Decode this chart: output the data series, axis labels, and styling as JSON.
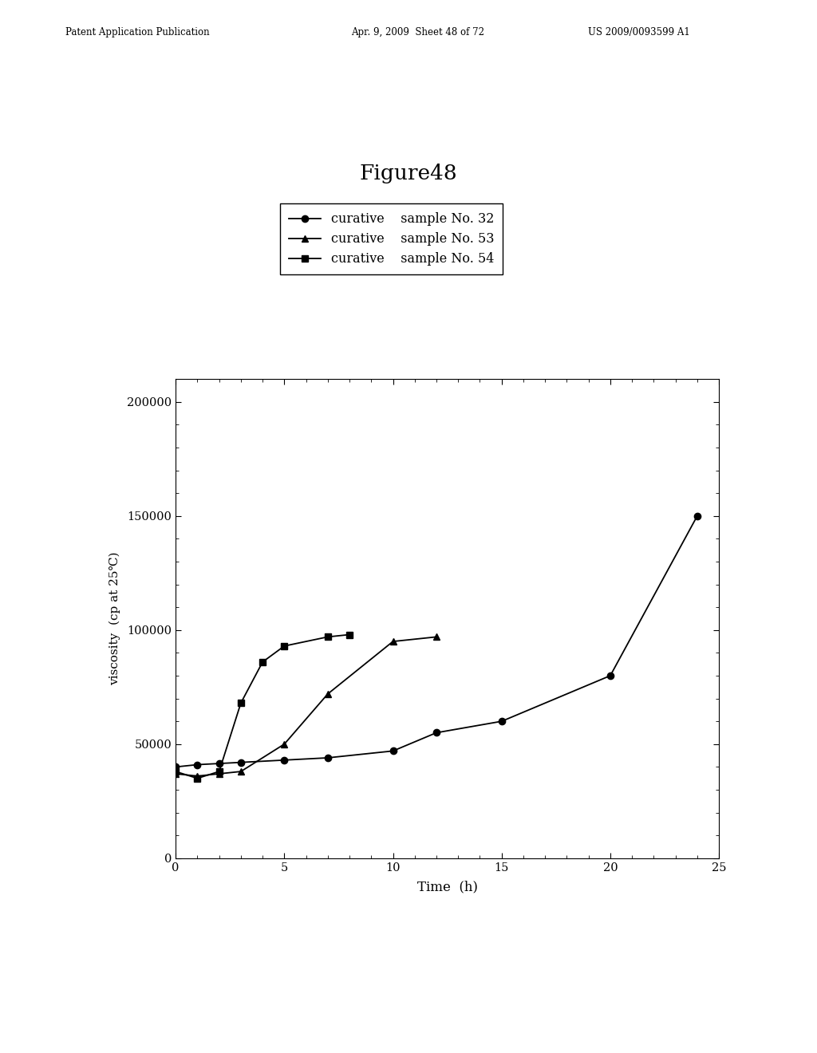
{
  "title": "Figure48",
  "xlabel": "Time  (h)",
  "ylabel": "viscosity  (cp at 25℃)",
  "header_left": "Patent Application Publication",
  "header_mid": "Apr. 9, 2009  Sheet 48 of 72",
  "header_right": "US 2009/0093599 A1",
  "series": [
    {
      "label": "curative    sample No. 32",
      "marker": "o",
      "x": [
        0,
        1,
        2,
        3,
        5,
        7,
        10,
        12,
        15,
        20,
        24
      ],
      "y": [
        40000,
        41000,
        41500,
        42000,
        43000,
        44000,
        47000,
        55000,
        60000,
        80000,
        150000
      ]
    },
    {
      "label": "curative    sample No. 53",
      "marker": "^",
      "x": [
        0,
        1,
        2,
        3,
        5,
        7,
        10,
        12
      ],
      "y": [
        37000,
        36000,
        37000,
        38000,
        50000,
        72000,
        95000,
        97000
      ]
    },
    {
      "label": "curative    sample No. 54",
      "marker": "s",
      "x": [
        0,
        1,
        2,
        3,
        4,
        5,
        7,
        8
      ],
      "y": [
        38000,
        35000,
        38000,
        68000,
        86000,
        93000,
        97000,
        98000
      ]
    }
  ],
  "xlim": [
    0,
    25
  ],
  "ylim": [
    0,
    210000
  ],
  "yticks": [
    0,
    50000,
    100000,
    150000,
    200000
  ],
  "xticks": [
    0,
    5,
    10,
    15,
    20,
    25
  ],
  "bg_color": "#ffffff",
  "marker_size": 6
}
